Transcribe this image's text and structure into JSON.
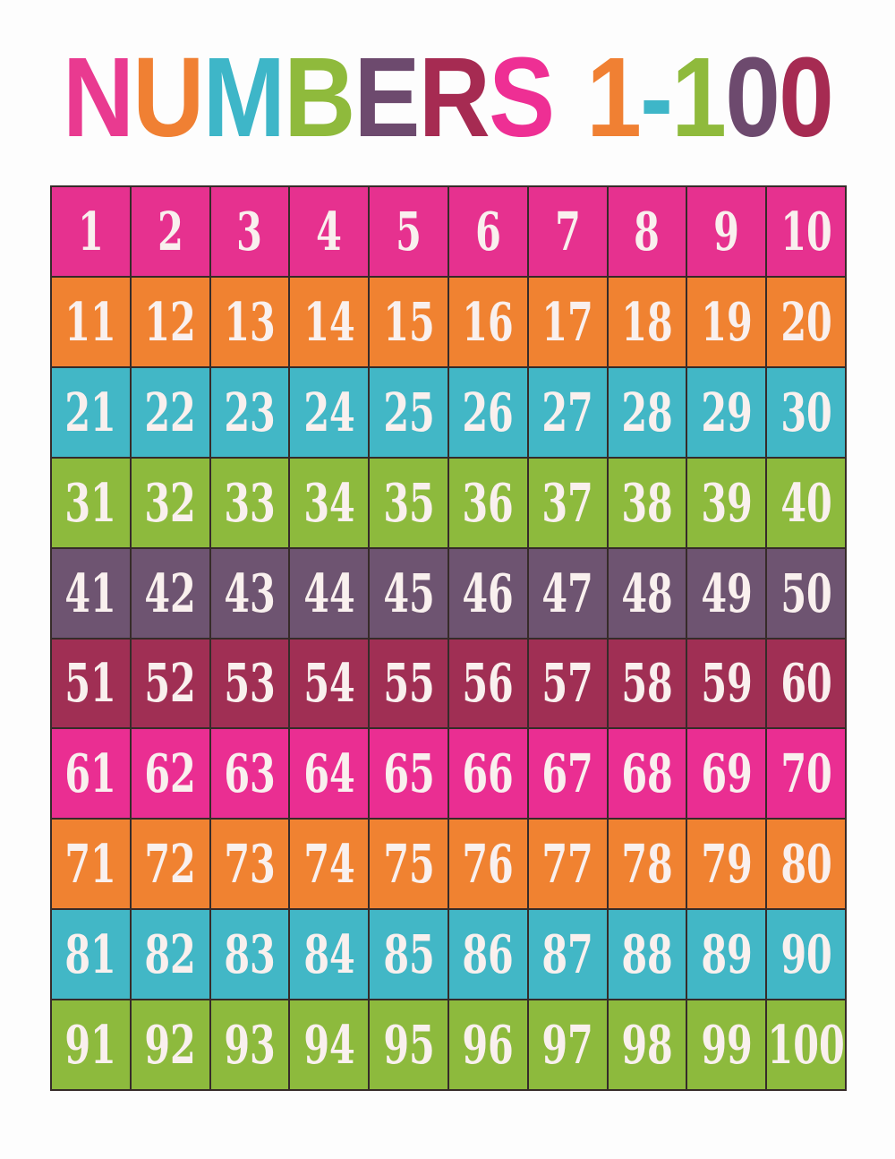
{
  "page": {
    "background_color": "#fdfdfd",
    "grid_line_color": "#362b29",
    "cell_text_color": "#f9f0ee"
  },
  "title": {
    "text": "NUMBERS 1-100",
    "letters": [
      {
        "ch": "N",
        "color": "#e93a90"
      },
      {
        "ch": "U",
        "color": "#f08033"
      },
      {
        "ch": "M",
        "color": "#3eb6c8"
      },
      {
        "ch": "B",
        "color": "#8fba3c"
      },
      {
        "ch": "E",
        "color": "#6d4a6e"
      },
      {
        "ch": "R",
        "color": "#a62b52"
      },
      {
        "ch": "S",
        "color": "#ee2f94"
      },
      {
        "ch": " ",
        "color": ""
      },
      {
        "ch": "1",
        "color": "#f08033"
      },
      {
        "ch": "-",
        "color": "#3eb6c8"
      },
      {
        "ch": "1",
        "color": "#8fba3c"
      },
      {
        "ch": "0",
        "color": "#6d4a6e"
      },
      {
        "ch": "0",
        "color": "#a62b52"
      }
    ]
  },
  "grid": {
    "rows": [
      {
        "color": "#e6318f",
        "color_name": "pink",
        "numbers": [
          1,
          2,
          3,
          4,
          5,
          6,
          7,
          8,
          9,
          10
        ]
      },
      {
        "color": "#f08231",
        "color_name": "orange",
        "numbers": [
          11,
          12,
          13,
          14,
          15,
          16,
          17,
          18,
          19,
          20
        ]
      },
      {
        "color": "#42b7c6",
        "color_name": "teal",
        "numbers": [
          21,
          22,
          23,
          24,
          25,
          26,
          27,
          28,
          29,
          30
        ]
      },
      {
        "color": "#8dba3d",
        "color_name": "green",
        "numbers": [
          31,
          32,
          33,
          34,
          35,
          36,
          37,
          38,
          39,
          40
        ]
      },
      {
        "color": "#6e5471",
        "color_name": "plum",
        "numbers": [
          41,
          42,
          43,
          44,
          45,
          46,
          47,
          48,
          49,
          50
        ]
      },
      {
        "color": "#a02f54",
        "color_name": "berry",
        "numbers": [
          51,
          52,
          53,
          54,
          55,
          56,
          57,
          58,
          59,
          60
        ]
      },
      {
        "color": "#ea2e92",
        "color_name": "pink",
        "numbers": [
          61,
          62,
          63,
          64,
          65,
          66,
          67,
          68,
          69,
          70
        ]
      },
      {
        "color": "#f08231",
        "color_name": "orange",
        "numbers": [
          71,
          72,
          73,
          74,
          75,
          76,
          77,
          78,
          79,
          80
        ]
      },
      {
        "color": "#42b7c6",
        "color_name": "teal",
        "numbers": [
          81,
          82,
          83,
          84,
          85,
          86,
          87,
          88,
          89,
          90
        ]
      },
      {
        "color": "#8dba3d",
        "color_name": "green",
        "numbers": [
          91,
          92,
          93,
          94,
          95,
          96,
          97,
          98,
          99,
          100
        ]
      }
    ]
  }
}
